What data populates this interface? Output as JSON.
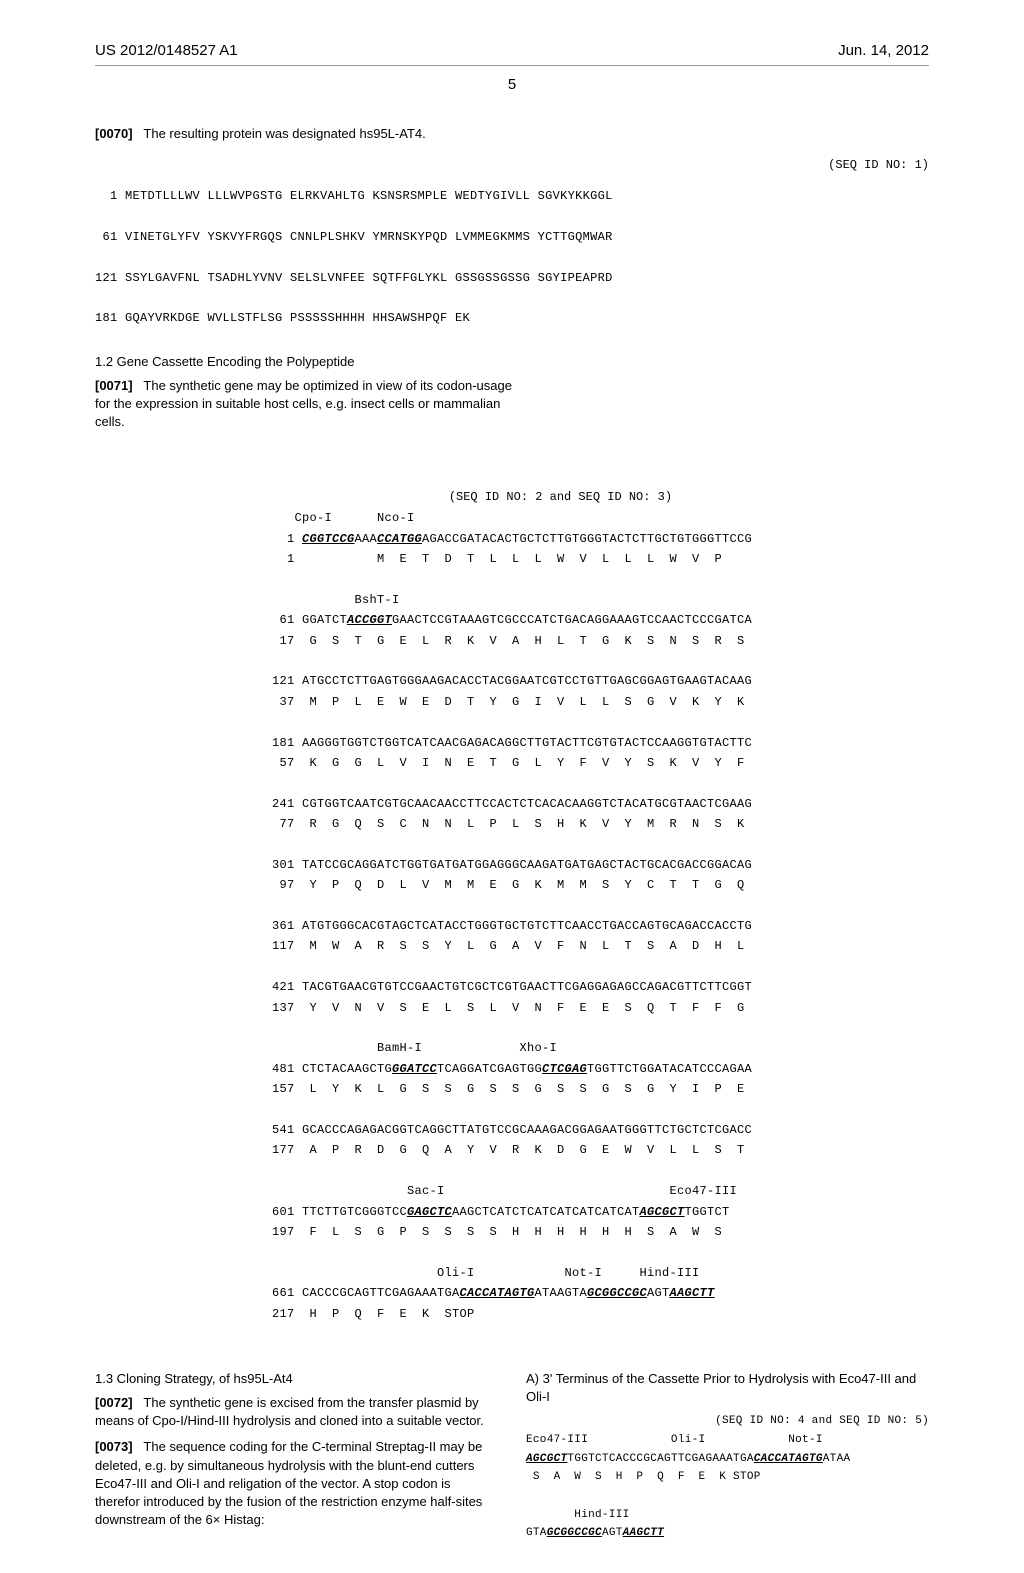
{
  "header": {
    "pub_no": "US 2012/0148527 A1",
    "date": "Jun. 14, 2012",
    "page": "5"
  },
  "p0070": {
    "num": "[0070]",
    "text": "The resulting protein was designated hs95L-AT4."
  },
  "seq1": {
    "label": "(SEQ ID NO: 1)",
    "lines": [
      "  1 METDTLLLWV LLLWVPGSTG ELRKVAHLTG KSNSRSMPLE WEDTYGIVLL SGVKYKKGGL",
      "",
      " 61 VINETGLYFV YSKVYFRGQS CNNLPLSHKV YMRNSKYPQD LVMMEGKMMS YCTTGQMWAR",
      "",
      "121 SSYLGAVFNL TSADHLYVNV SELSLVNFEE SQTFFGLYKL GSSGSSGSSG SGYIPEAPRD",
      "",
      "181 GQAYVRKDGE WVLLSTFLSG PSSSSSHHHH HHSAWSHPQF EK"
    ]
  },
  "sec12": {
    "title": "1.2 Gene Cassette Encoding the Polypeptide",
    "num": "[0071]",
    "text": "The synthetic gene may be optimized in view of its codon-usage for the expression in suitable host cells, e.g. insect cells or mammalian cells."
  },
  "seq23": {
    "label": "(SEQ ID NO: 2 and SEQ ID NO: 3)"
  },
  "sec13": {
    "title": "1.3 Cloning Strategy, of hs95L-At4",
    "p72num": "[0072]",
    "p72": "The synthetic gene is excised from the transfer plasmid by means of Cpo-I/Hind-III hydrolysis and cloned into a suitable vector.",
    "p73num": "[0073]",
    "p73": "The sequence coding for the C-terminal Streptag-II may be deleted, e.g. by simultaneous hydrolysis with the blunt-end cutters Eco47-III and Oli-I and religation of the vector. A stop codon is therefor introduced by the fusion of the restriction enzyme half-sites downstream of the 6× Histag:"
  },
  "rightA": {
    "head": "A) 3' Terminus of the Cassette Prior to Hydrolysis with Eco47-III and Oli-I",
    "label": "(SEQ ID NO: 4 and SEQ ID NO: 5)"
  }
}
